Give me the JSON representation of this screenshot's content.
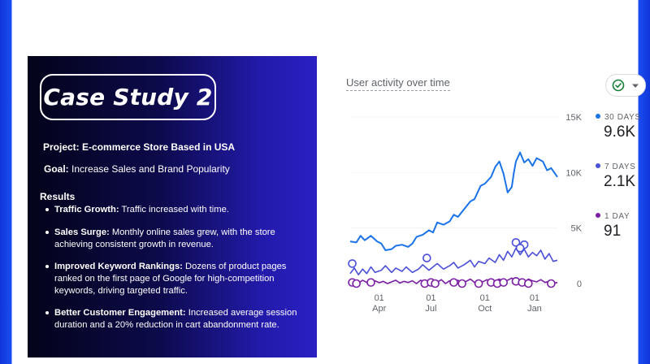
{
  "case_study": {
    "title": "Case Study 2",
    "project_label": "Project:",
    "project_value": "E-commerce Store Based in USA",
    "goal_label": "Goal:",
    "goal_value": "Increase Sales and Brand Popularity",
    "results_heading": "Results",
    "results": [
      {
        "label": "Traffic Growth:",
        "text": "Traffic increased with time."
      },
      {
        "label": "Sales Surge:",
        "text": "Monthly online sales grew, with the store achieving consistent growth in revenue."
      },
      {
        "label": "Improved Keyword Rankings:",
        "text": "Dozens of product pages ranked on the first page of Google for high-competition keywords, driving targeted traffic."
      },
      {
        "label": "Better Customer Engagement:",
        "text": "Increased average session duration and a 20% reduction in cart abandonment rate."
      }
    ]
  },
  "chart_data": {
    "type": "line",
    "title": "User activity over time",
    "y_ticks": [
      "15K",
      "10K",
      "5K",
      "0"
    ],
    "ylim": [
      0,
      15000
    ],
    "x_ticks": [
      {
        "day": "01",
        "month": "Apr"
      },
      {
        "day": "01",
        "month": "Jul"
      },
      {
        "day": "01",
        "month": "Oct"
      },
      {
        "day": "01",
        "month": "Jan"
      }
    ],
    "x_tick_positions": [
      0.14,
      0.39,
      0.65,
      0.89
    ],
    "legend": [
      {
        "label": "30 DAYS",
        "value": "9.6K",
        "color": "#1a73e8"
      },
      {
        "label": "7 DAYS",
        "value": "2.1K",
        "color": "#4a4fd8"
      },
      {
        "label": "1 DAY",
        "value": "91",
        "color": "#7b1fa2"
      }
    ],
    "series": [
      {
        "name": "30 DAYS",
        "color": "#1a73e8",
        "x": [
          0.0,
          0.03,
          0.05,
          0.07,
          0.1,
          0.13,
          0.15,
          0.17,
          0.2,
          0.22,
          0.25,
          0.28,
          0.3,
          0.32,
          0.35,
          0.38,
          0.4,
          0.42,
          0.45,
          0.48,
          0.5,
          0.52,
          0.55,
          0.58,
          0.6,
          0.63,
          0.65,
          0.68,
          0.7,
          0.72,
          0.74,
          0.76,
          0.78,
          0.79,
          0.8,
          0.82,
          0.84,
          0.86,
          0.88,
          0.9,
          0.93,
          0.95,
          0.97,
          1.0
        ],
        "y": [
          3800,
          3700,
          4300,
          3900,
          4300,
          3800,
          3600,
          3000,
          3100,
          3400,
          3500,
          3300,
          3600,
          4200,
          4400,
          4800,
          4600,
          5500,
          5300,
          5600,
          6200,
          6000,
          6700,
          7400,
          7600,
          8800,
          9000,
          9600,
          10500,
          11000,
          9900,
          8200,
          8700,
          10000,
          11000,
          11800,
          10900,
          11200,
          10600,
          11300,
          11000,
          10200,
          10400,
          9600
        ]
      },
      {
        "name": "7 DAYS",
        "color": "#4a4fd8",
        "x": [
          0.0,
          0.02,
          0.04,
          0.06,
          0.08,
          0.1,
          0.12,
          0.15,
          0.17,
          0.2,
          0.22,
          0.25,
          0.27,
          0.3,
          0.33,
          0.35,
          0.38,
          0.4,
          0.42,
          0.45,
          0.48,
          0.5,
          0.52,
          0.55,
          0.58,
          0.6,
          0.62,
          0.65,
          0.67,
          0.7,
          0.72,
          0.74,
          0.76,
          0.78,
          0.8,
          0.82,
          0.84,
          0.86,
          0.88,
          0.9,
          0.92,
          0.94,
          0.96,
          0.98,
          1.0
        ],
        "y": [
          900,
          1400,
          800,
          1300,
          900,
          1500,
          1000,
          1200,
          1600,
          1000,
          1400,
          1100,
          1500,
          1000,
          1300,
          1700,
          1200,
          1500,
          1800,
          1300,
          1600,
          1900,
          1400,
          1700,
          2100,
          1500,
          2000,
          1800,
          2300,
          1900,
          2600,
          2100,
          2900,
          2400,
          3200,
          2600,
          3100,
          2400,
          2800,
          2500,
          3000,
          2200,
          2700,
          2000,
          2100
        ]
      },
      {
        "name": "1 DAY",
        "color": "#7b1fa2",
        "x": [
          0.0,
          0.02,
          0.04,
          0.06,
          0.08,
          0.1,
          0.12,
          0.14,
          0.16,
          0.18,
          0.2,
          0.22,
          0.24,
          0.26,
          0.28,
          0.3,
          0.32,
          0.34,
          0.36,
          0.38,
          0.4,
          0.42,
          0.44,
          0.46,
          0.48,
          0.5,
          0.52,
          0.54,
          0.56,
          0.58,
          0.6,
          0.62,
          0.64,
          0.66,
          0.68,
          0.7,
          0.72,
          0.74,
          0.76,
          0.78,
          0.8,
          0.82,
          0.84,
          0.86,
          0.88,
          0.9,
          0.92,
          0.94,
          0.96,
          0.98,
          1.0
        ],
        "y": [
          0,
          200,
          50,
          300,
          100,
          0,
          250,
          80,
          200,
          0,
          150,
          300,
          50,
          200,
          100,
          250,
          0,
          300,
          150,
          50,
          200,
          100,
          350,
          0,
          250,
          150,
          300,
          50,
          200,
          400,
          100,
          300,
          150,
          350,
          50,
          250,
          400,
          100,
          300,
          500,
          200,
          350,
          100,
          400,
          250,
          150,
          350,
          100,
          200,
          50,
          91
        ]
      }
    ],
    "markers": [
      {
        "series": "7 DAYS",
        "x": 0.01,
        "y": 1800
      },
      {
        "series": "7 DAYS",
        "x": 0.37,
        "y": 2300
      },
      {
        "series": "7 DAYS",
        "x": 0.8,
        "y": 3700
      },
      {
        "series": "7 DAYS",
        "x": 0.84,
        "y": 3500
      },
      {
        "series": "7 DAYS",
        "x": 0.82,
        "y": 3200
      },
      {
        "series": "1 DAY",
        "x": 0.01,
        "y": 100
      },
      {
        "series": "1 DAY",
        "x": 0.03,
        "y": 0
      },
      {
        "series": "1 DAY",
        "x": 0.1,
        "y": 100
      },
      {
        "series": "1 DAY",
        "x": 0.36,
        "y": 0
      },
      {
        "series": "1 DAY",
        "x": 0.39,
        "y": 100
      },
      {
        "series": "1 DAY",
        "x": 0.41,
        "y": 0
      },
      {
        "series": "1 DAY",
        "x": 0.5,
        "y": 100
      },
      {
        "series": "1 DAY",
        "x": 0.54,
        "y": 0
      },
      {
        "series": "1 DAY",
        "x": 0.62,
        "y": 0
      },
      {
        "series": "1 DAY",
        "x": 0.68,
        "y": 100
      },
      {
        "series": "1 DAY",
        "x": 0.71,
        "y": 0
      },
      {
        "series": "1 DAY",
        "x": 0.74,
        "y": 100
      },
      {
        "series": "1 DAY",
        "x": 0.8,
        "y": 200
      },
      {
        "series": "1 DAY",
        "x": 0.83,
        "y": 100
      },
      {
        "series": "1 DAY",
        "x": 0.86,
        "y": 0
      },
      {
        "series": "1 DAY",
        "x": 0.97,
        "y": 0
      }
    ]
  },
  "controls": {
    "compare_icon": "check-circle-icon",
    "dropdown_icon": "chevron-down-icon"
  },
  "colors": {
    "accent": "#1a73e8",
    "panel_start": "#03031a",
    "panel_end": "#2a20c4",
    "frame": "#1a4cf0"
  }
}
